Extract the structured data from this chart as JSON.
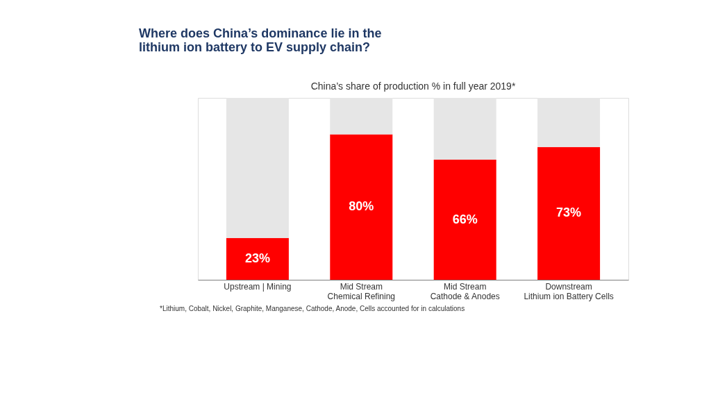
{
  "chart_data": {
    "type": "bar",
    "title": "Where does China’s dominance lie in the\nlithium ion battery to EV supply chain?",
    "subtitle": "China’s share of production % in full year 2019*",
    "categories": [
      "Upstream | Mining",
      "Mid Stream\nChemical Refining",
      "Mid Stream\nCathode & Anodes",
      "Downstream\nLithium ion Battery Cells"
    ],
    "stacked": true,
    "grid": false,
    "tick_labels": "x",
    "series": [
      {
        "color": "#ff0000",
        "values": [
          23,
          80,
          66,
          73
        ],
        "value_labels": [
          "23%",
          "80%",
          "66%",
          "73%"
        ]
      },
      {
        "color": "#e6e6e6",
        "values": [
          77,
          20,
          34,
          27
        ]
      }
    ],
    "annotations": [
      "*Lithium, Cobalt, Nickel, Graphite, Manganese, Cathode, Anode, Cells accounted for in calculations"
    ]
  }
}
